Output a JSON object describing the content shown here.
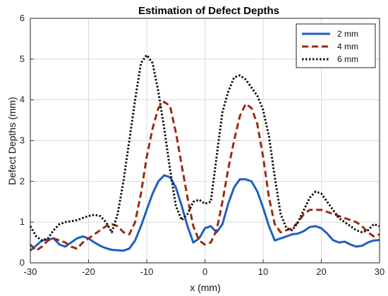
{
  "chart_data": {
    "type": "line",
    "title": "Estimation of Defect Depths",
    "xlabel": "x (mm)",
    "ylabel": "Defect Depths (mm)",
    "xlim": [
      -30,
      30
    ],
    "ylim": [
      0,
      6
    ],
    "xticks": [
      "-30",
      "-20",
      "-10",
      "0",
      "10",
      "20",
      "30"
    ],
    "yticks": [
      "0",
      "1",
      "2",
      "3",
      "4",
      "5",
      "6"
    ],
    "grid": true,
    "legend_position": "top-right",
    "series": [
      {
        "name": "2 mm",
        "color": "#1f5fbf",
        "style": "solid",
        "x": [
          -30,
          -28,
          -26,
          -25,
          -24,
          -23,
          -22,
          -21,
          -20,
          -19,
          -18,
          -17,
          -16,
          -15,
          -14,
          -13,
          -12,
          -11,
          -10,
          -9,
          -8,
          -7,
          -6,
          -5,
          -4,
          -3,
          -2,
          -1,
          0,
          1,
          2,
          3,
          4,
          5,
          6,
          7,
          8,
          9,
          10,
          11,
          12,
          13,
          14,
          15,
          16,
          17,
          18,
          19,
          20,
          21,
          22,
          23,
          24,
          25,
          26,
          27,
          28,
          29,
          30
        ],
        "y": [
          0.3,
          0.55,
          0.6,
          0.45,
          0.4,
          0.5,
          0.6,
          0.65,
          0.6,
          0.5,
          0.42,
          0.36,
          0.32,
          0.31,
          0.3,
          0.35,
          0.55,
          0.9,
          1.3,
          1.7,
          2.0,
          2.15,
          2.1,
          1.85,
          1.4,
          0.9,
          0.5,
          0.6,
          0.85,
          0.9,
          0.75,
          0.95,
          1.45,
          1.85,
          2.05,
          2.05,
          2.0,
          1.75,
          1.35,
          0.9,
          0.55,
          0.6,
          0.65,
          0.7,
          0.72,
          0.78,
          0.88,
          0.9,
          0.85,
          0.72,
          0.56,
          0.5,
          0.52,
          0.45,
          0.4,
          0.42,
          0.5,
          0.55,
          0.56
        ]
      },
      {
        "name": "4 mm",
        "color": "#9b2a12",
        "style": "dashed",
        "x": [
          -30,
          -29,
          -28,
          -27,
          -26,
          -25,
          -24,
          -23,
          -22,
          -21,
          -20,
          -19,
          -18,
          -17,
          -16,
          -15,
          -14,
          -13,
          -12,
          -11,
          -10,
          -9,
          -8,
          -7,
          -6,
          -5,
          -4,
          -3,
          -2,
          -1,
          0,
          1,
          2,
          3,
          4,
          5,
          6,
          7,
          8,
          9,
          10,
          11,
          12,
          13,
          14,
          15,
          16,
          17,
          18,
          19,
          20,
          21,
          22,
          23,
          24,
          25,
          26,
          27,
          28,
          29,
          30
        ],
        "y": [
          0.45,
          0.3,
          0.4,
          0.55,
          0.6,
          0.55,
          0.5,
          0.4,
          0.35,
          0.5,
          0.6,
          0.7,
          0.8,
          0.9,
          0.95,
          0.9,
          0.75,
          0.7,
          1.0,
          1.7,
          2.6,
          3.3,
          3.8,
          3.95,
          3.85,
          3.2,
          2.4,
          1.6,
          0.9,
          0.55,
          0.45,
          0.5,
          0.8,
          1.5,
          2.3,
          3.0,
          3.6,
          3.9,
          3.8,
          3.4,
          2.6,
          1.6,
          0.95,
          0.75,
          0.8,
          0.85,
          1.0,
          1.2,
          1.3,
          1.3,
          1.3,
          1.25,
          1.2,
          1.15,
          1.1,
          1.05,
          1.0,
          0.9,
          0.75,
          0.65,
          0.7
        ]
      },
      {
        "name": "6 mm",
        "color": "#111111",
        "style": "dotted",
        "x": [
          -30,
          -29,
          -28,
          -27,
          -26,
          -25,
          -24,
          -23,
          -22,
          -21,
          -20,
          -19,
          -18,
          -17,
          -16,
          -15,
          -14,
          -13,
          -12,
          -11,
          -10,
          -9,
          -8,
          -7,
          -6,
          -5,
          -4,
          -3,
          -2,
          -1,
          0,
          1,
          2,
          3,
          4,
          5,
          6,
          7,
          8,
          9,
          10,
          11,
          12,
          13,
          14,
          15,
          16,
          17,
          18,
          19,
          20,
          21,
          22,
          23,
          24,
          25,
          26,
          27,
          28,
          29,
          30
        ],
        "y": [
          0.9,
          0.65,
          0.55,
          0.6,
          0.8,
          0.95,
          1.0,
          1.02,
          1.05,
          1.1,
          1.15,
          1.18,
          1.15,
          1.0,
          0.75,
          1.2,
          2.0,
          3.0,
          4.0,
          4.9,
          5.1,
          4.9,
          4.2,
          3.3,
          2.3,
          1.4,
          1.05,
          1.2,
          1.5,
          1.55,
          1.45,
          1.5,
          2.6,
          3.7,
          4.2,
          4.55,
          4.6,
          4.5,
          4.3,
          4.1,
          3.75,
          3.1,
          2.1,
          1.2,
          0.85,
          0.8,
          1.0,
          1.3,
          1.6,
          1.75,
          1.7,
          1.5,
          1.3,
          1.1,
          1.0,
          0.9,
          0.8,
          0.75,
          0.8,
          0.95,
          0.9
        ]
      }
    ]
  }
}
